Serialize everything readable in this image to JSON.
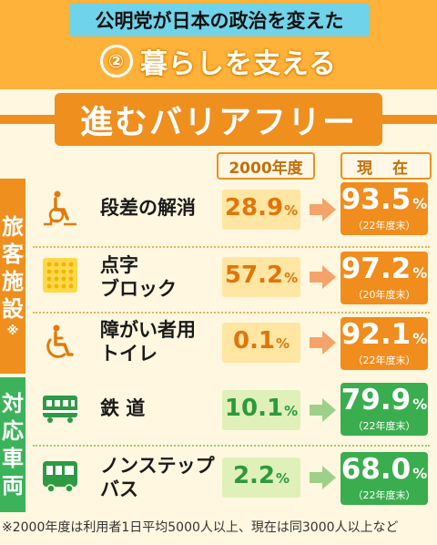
{
  "header": {
    "series_title": "公明党が日本の政治を変えた",
    "number": "②",
    "subtitle": "暮らしを支える"
  },
  "banner": "進むバリアフリー",
  "columns": {
    "y2000": "2000年度",
    "now": "現 在"
  },
  "sections": {
    "facilities": {
      "chars": [
        "旅",
        "客",
        "施",
        "設"
      ],
      "note": "※"
    },
    "vehicles": {
      "chars": [
        "対",
        "応",
        "車",
        "両"
      ]
    }
  },
  "rows": [
    {
      "icon": "wheelchair-stairs-icon",
      "label1": "段差の解消",
      "label2": "",
      "old_value": "28.9",
      "new_value": "93.5",
      "pct": "%",
      "year": "（22年度末）",
      "color": "#f08d1d"
    },
    {
      "icon": "tactile-block-icon",
      "label1": "点字",
      "label2": "ブロック",
      "old_value": "57.2",
      "new_value": "97.2",
      "pct": "%",
      "year": "（20年度末）",
      "color": "#f08d1d"
    },
    {
      "icon": "accessible-toilet-icon",
      "label1": "障がい者用",
      "label2": "トイレ",
      "old_value": "0.1",
      "new_value": "92.1",
      "pct": "%",
      "year": "（22年度末）",
      "color": "#f08d1d"
    },
    {
      "icon": "train-icon",
      "label1": "鉄 道",
      "label2": "",
      "old_value": "10.1",
      "new_value": "79.9",
      "pct": "%",
      "year": "（22年度末）",
      "color": "#3aae4e"
    },
    {
      "icon": "bus-icon",
      "label1": "ノンステップ",
      "label2": "バス",
      "old_value": "2.2",
      "new_value": "68.0",
      "pct": "%",
      "year": "（22年度末）",
      "color": "#3aae4e"
    }
  ],
  "footnote": "※2000年度は利用者1日平均5000人以上、現在は同3000人以上など"
}
